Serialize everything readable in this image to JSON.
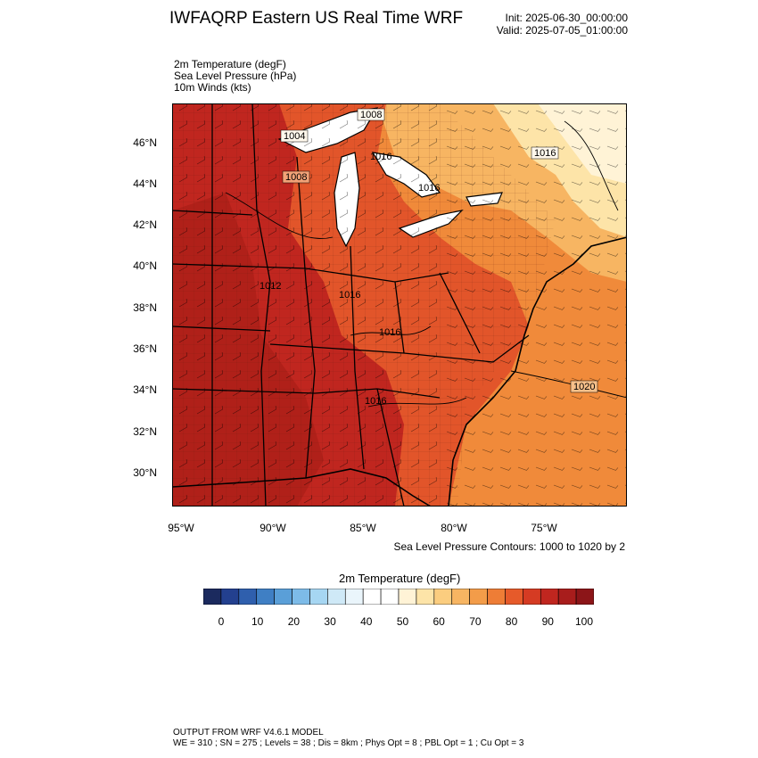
{
  "header": {
    "title": "IWFAQRP Eastern US Real Time WRF",
    "init": "Init: 2025-06-30_00:00:00",
    "valid": "Valid: 2025-07-05_01:00:00"
  },
  "fields": [
    "2m Temperature   (degF)",
    "Sea Level Pressure   (hPa)",
    "10m Winds   (kts)"
  ],
  "map": {
    "lat_labels": [
      "46°N",
      "44°N",
      "42°N",
      "40°N",
      "38°N",
      "36°N",
      "34°N",
      "32°N",
      "30°N"
    ],
    "lon_labels": [
      "95°W",
      "90°W",
      "85°W",
      "80°W",
      "75°W"
    ],
    "pressure_labels": [
      "1008",
      "1004",
      "1016",
      "1016",
      "1008",
      "1016",
      "1012",
      "1016",
      "1016",
      "1016",
      "1020"
    ],
    "contour_note": "Sea Level Pressure Contours: 1000 to 1020 by 2",
    "colors": {
      "hot": "#c0261f",
      "warm": "#e2552a",
      "mild": "#f08a3a",
      "cool": "#f7b562",
      "pale": "#fde4a8",
      "lake": "#ffffff"
    }
  },
  "colorbar": {
    "title": "2m Temperature  (degF)",
    "ticks": [
      "0",
      "10",
      "20",
      "30",
      "40",
      "50",
      "60",
      "70",
      "80",
      "90",
      "100"
    ],
    "colors": [
      "#1b2a5e",
      "#23408f",
      "#2f5fad",
      "#3f7fc4",
      "#5a9fd8",
      "#7dbbe8",
      "#a6d6f2",
      "#cfe9f7",
      "#eaf5fb",
      "#ffffff",
      "#ffffff",
      "#fff3d6",
      "#fde4a8",
      "#fbcd7f",
      "#f7b562",
      "#f39c49",
      "#ee7d36",
      "#e65a2a",
      "#d53b23",
      "#c0261f",
      "#a81d1c",
      "#8c1518"
    ]
  },
  "footer": {
    "line1": "OUTPUT FROM WRF V4.6.1 MODEL",
    "line2": "WE = 310 ; SN = 275 ; Levels = 38 ; Dis = 8km ; Phys Opt = 8 ; PBL Opt = 1 ; Cu Opt = 3"
  }
}
